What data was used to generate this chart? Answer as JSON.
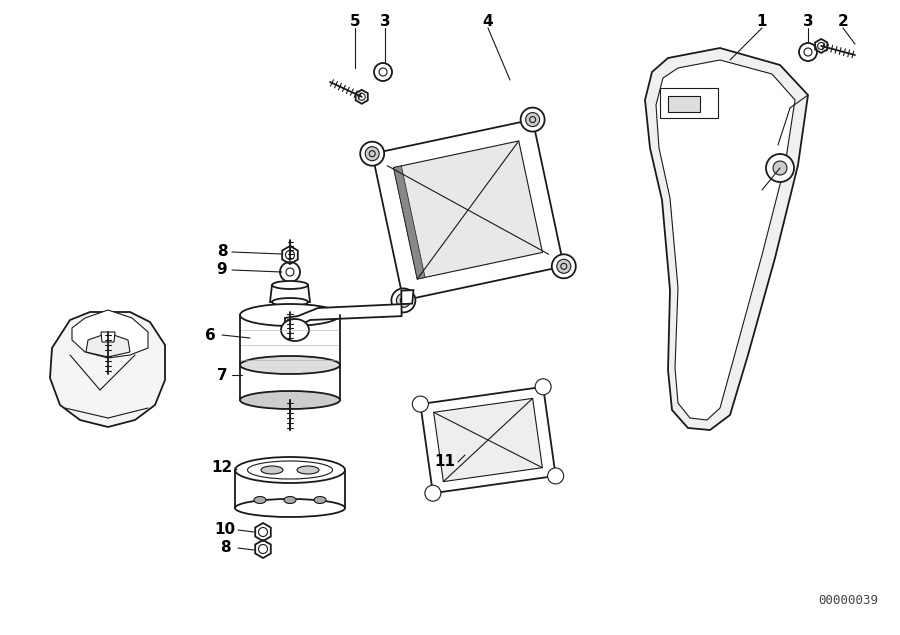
{
  "diagram_id": "00000039",
  "background_color": "#ffffff",
  "line_color": "#1a1a1a",
  "label_color": "#000000",
  "fig_width": 9.0,
  "fig_height": 6.35,
  "dpi": 100
}
